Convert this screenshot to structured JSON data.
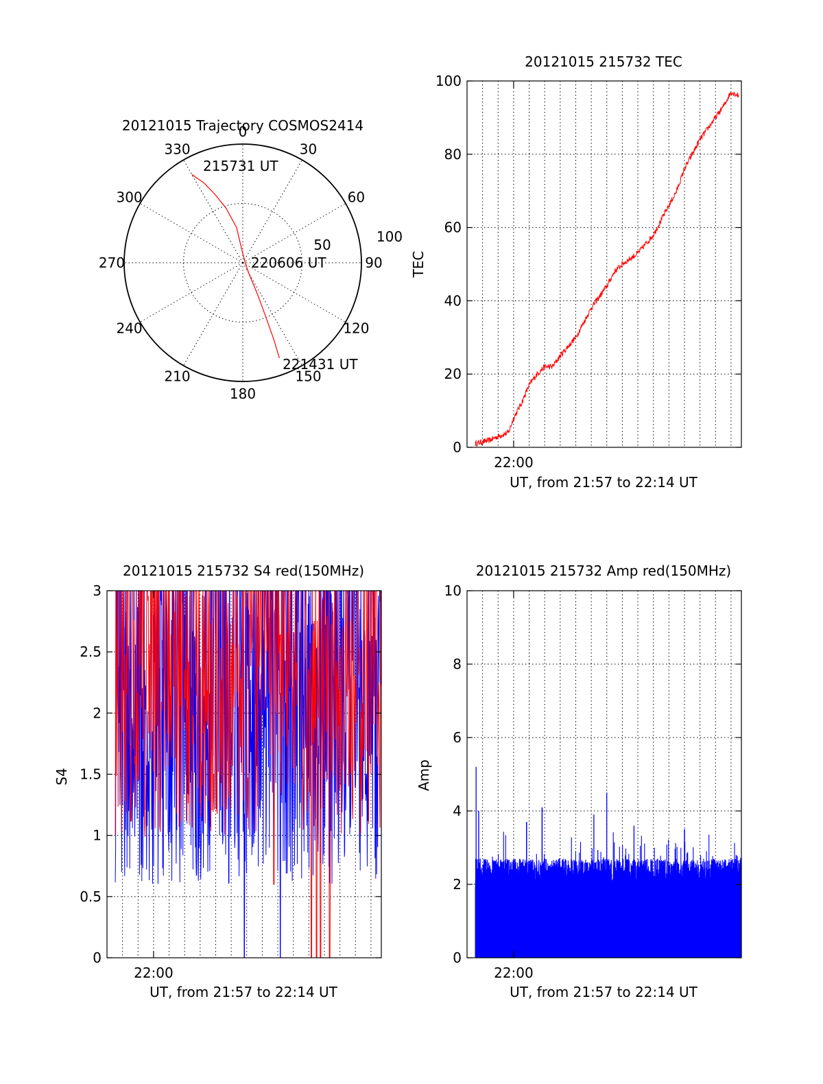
{
  "colors": {
    "red": "#ff0000",
    "blue": "#0000ff",
    "ink": "#000000",
    "background": "#ffffff"
  },
  "chart_data": [
    {
      "id": "trajectory",
      "type": "polar",
      "title": "20121015 Trajectory COSMOS2414",
      "azimuth_labels": [
        "0",
        "30",
        "60",
        "90",
        "120",
        "150",
        "180",
        "210",
        "240",
        "270",
        "300",
        "330"
      ],
      "radial_labels": [
        "50",
        "100"
      ],
      "start_label": "215731 UT",
      "mid_label": "220606 UT",
      "end_label": "221431 UT",
      "track_color": "red",
      "track": [
        [
          330,
          86
        ],
        [
          334,
          75
        ],
        [
          338,
          62
        ],
        [
          343,
          48
        ],
        [
          350,
          30
        ],
        [
          355,
          12
        ],
        [
          90,
          2
        ],
        [
          150,
          10
        ],
        [
          155,
          30
        ],
        [
          157,
          50
        ],
        [
          158,
          70
        ],
        [
          159,
          86
        ]
      ],
      "grid": true
    },
    {
      "id": "tec",
      "type": "line",
      "title": "20121015 215732 TEC",
      "ylabel": "TEC",
      "xlabel": "UT, from 21:57 to 22:14 UT",
      "x_tick_labels": [
        "22:00"
      ],
      "y_tick_labels": [
        "0",
        "20",
        "40",
        "60",
        "80",
        "100"
      ],
      "xlim": [
        "21:57:00",
        "22:14:40"
      ],
      "ylim": [
        0,
        100
      ],
      "grid": true,
      "series": [
        {
          "color": "red",
          "x": [
            "21:57:32",
            "21:58:30",
            "21:59:00",
            "21:59:40",
            "22:00:00",
            "22:00:30",
            "22:01:00",
            "22:01:30",
            "22:02:00",
            "22:02:30",
            "22:03:00",
            "22:04:00",
            "22:05:00",
            "22:06:00",
            "22:06:30",
            "22:07:00",
            "22:08:00",
            "22:09:00",
            "22:10:00",
            "22:10:30",
            "22:11:00",
            "22:12:00",
            "22:13:00",
            "22:13:30",
            "22:14:00",
            "22:14:30"
          ],
          "values": [
            1,
            2,
            3,
            4,
            8,
            12,
            17,
            20,
            22,
            22,
            25,
            30,
            38,
            44,
            48,
            50,
            53,
            58,
            66,
            70,
            76,
            84,
            90,
            93,
            97,
            96
          ]
        }
      ]
    },
    {
      "id": "s4",
      "type": "line",
      "title": "20121015 215732 S4 red(150MHz)",
      "ylabel": "S4",
      "xlabel": "UT, from 21:57 to 22:14 UT",
      "x_tick_labels": [
        "22:00"
      ],
      "y_tick_labels": [
        "0",
        "0.5",
        "1",
        "1.5",
        "2",
        "2.5",
        "3"
      ],
      "xlim": [
        "21:57:00",
        "22:14:40"
      ],
      "ylim": [
        0,
        3
      ],
      "grid": true,
      "series": [
        {
          "color": "blue",
          "x_start": "21:57:32",
          "x_end": "22:14:40",
          "level_range": [
            1.0,
            3.0
          ],
          "mean": 2.0,
          "dropouts": [
            [
              "22:05:50",
              0
            ],
            [
              "22:08:10",
              0
            ]
          ]
        },
        {
          "color": "red",
          "x_start": "21:57:32",
          "x_end": "22:14:40",
          "level_range": [
            1.1,
            3.0
          ],
          "mean": 2.3,
          "dropouts": [
            [
              "22:07:45",
              0.6
            ],
            [
              "22:10:10",
              0
            ],
            [
              "22:10:30",
              0
            ],
            [
              "22:10:45",
              0
            ],
            [
              "22:11:20",
              0
            ]
          ]
        }
      ]
    },
    {
      "id": "amp",
      "type": "bar",
      "title": "20121015 215732 Amp red(150MHz)",
      "ylabel": "Amp",
      "xlabel": "UT, from 21:57 to 22:14 UT",
      "x_tick_labels": [
        "22:00"
      ],
      "y_tick_labels": [
        "0",
        "2",
        "4",
        "6",
        "8",
        "10"
      ],
      "xlim": [
        "21:57:00",
        "22:14:40"
      ],
      "ylim": [
        0,
        10
      ],
      "grid": true,
      "series": [
        {
          "color": "blue",
          "x_start": "21:57:32",
          "x_end": "22:14:40",
          "typical_peak": 2.4,
          "peaks": [
            [
              "21:57:35",
              5.2
            ],
            [
              "21:57:45",
              4.0
            ],
            [
              "22:00:50",
              3.7
            ],
            [
              "22:01:50",
              4.1
            ],
            [
              "22:05:10",
              3.9
            ],
            [
              "22:06:00",
              4.5
            ],
            [
              "22:07:45",
              3.6
            ],
            [
              "22:11:00",
              3.5
            ],
            [
              "22:14:20",
              2.8
            ]
          ]
        }
      ]
    }
  ]
}
